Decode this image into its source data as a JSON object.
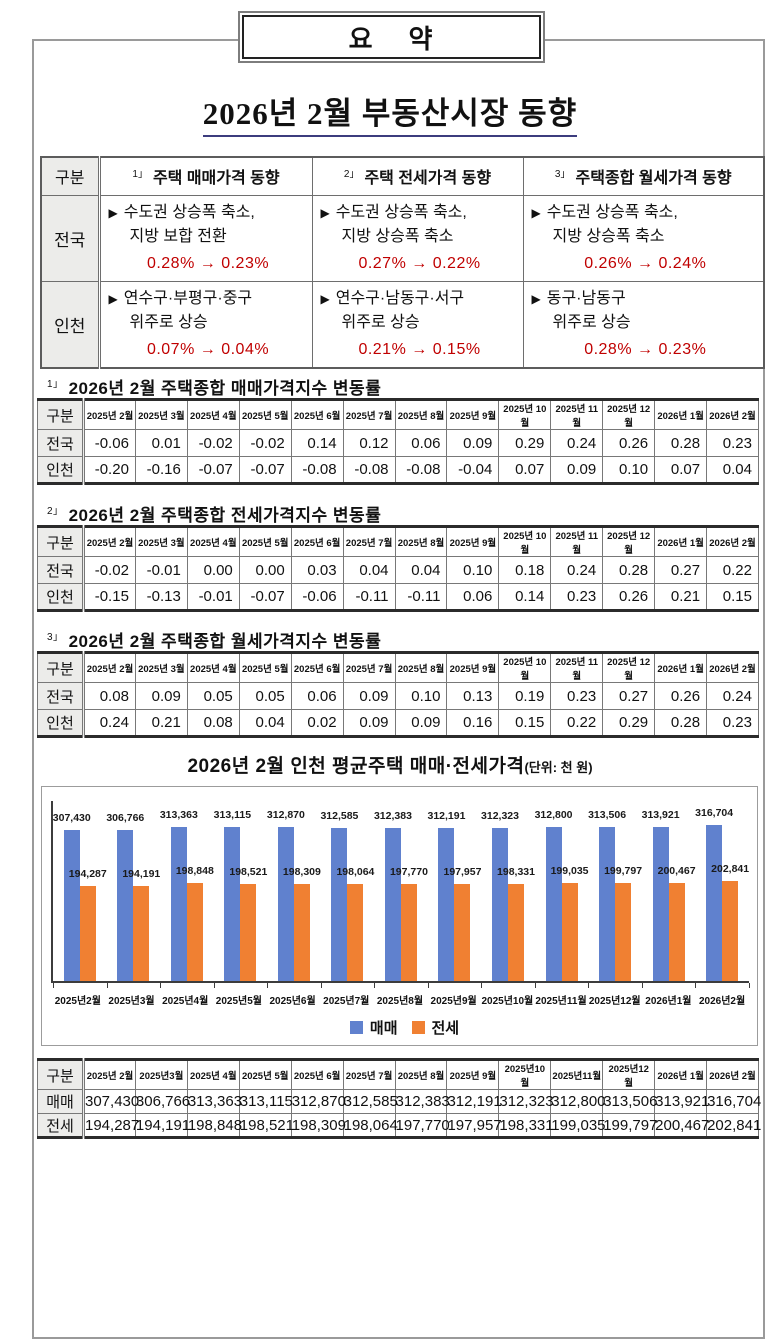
{
  "page": {
    "summary_box_label": "요    약",
    "main_title": "2026년 2월 부동산시장 동향"
  },
  "colors": {
    "accent_red": "#c00000",
    "bar_sale": "#6081ce",
    "bar_jeonse": "#f08032",
    "rowhead_bg": "#ececea"
  },
  "summary_table": {
    "corner_label": "구분",
    "columns": [
      {
        "sup": "1」",
        "label": "주택 매매가격 동향"
      },
      {
        "sup": "2」",
        "label": "주택 전세가격 동향"
      },
      {
        "sup": "3」",
        "label": "주택종합 월세가격 동향"
      }
    ],
    "rows": [
      {
        "label": "전국",
        "cells": [
          {
            "marker": "▶",
            "line1": "수도권 상승폭 축소,",
            "line2": "지방 보합 전환",
            "change": "0.28% → 0.23%"
          },
          {
            "marker": "▶",
            "line1": "수도권 상승폭 축소,",
            "line2": "지방 상승폭 축소",
            "change": "0.27% → 0.22%"
          },
          {
            "marker": "▶",
            "line1": "수도권 상승폭 축소,",
            "line2": "지방 상승폭 축소",
            "change": "0.26% → 0.24%"
          }
        ]
      },
      {
        "label": "인천",
        "cells": [
          {
            "marker": "▶",
            "line1": "연수구·부평구·중구",
            "line2": "위주로 상승",
            "change": "0.07% → 0.04%"
          },
          {
            "marker": "▶",
            "line1": "연수구·남동구·서구",
            "line2": "위주로 상승",
            "change": "0.21% → 0.15%"
          },
          {
            "marker": "▶",
            "line1": "동구·남동구",
            "line2": "위주로 상승",
            "change": "0.28% → 0.23%"
          }
        ]
      }
    ]
  },
  "index_tables": [
    {
      "sup": "1」",
      "title": "2026년 2월 주택종합 매매가격지수 변동률",
      "corner": "구분",
      "months": [
        "2025년 2월",
        "2025년 3월",
        "2025년 4월",
        "2025년 5월",
        "2025년 6월",
        "2025년 7월",
        "2025년 8월",
        "2025년 9월",
        "2025년 10월",
        "2025년 11월",
        "2025년 12월",
        "2026년 1월",
        "2026년 2월"
      ],
      "rows": [
        {
          "label": "전국",
          "values": [
            "-0.06",
            "0.01",
            "-0.02",
            "-0.02",
            "0.14",
            "0.12",
            "0.06",
            "0.09",
            "0.29",
            "0.24",
            "0.26",
            "0.28",
            "0.23"
          ]
        },
        {
          "label": "인천",
          "values": [
            "-0.20",
            "-0.16",
            "-0.07",
            "-0.07",
            "-0.08",
            "-0.08",
            "-0.08",
            "-0.04",
            "0.07",
            "0.09",
            "0.10",
            "0.07",
            "0.04"
          ]
        }
      ]
    },
    {
      "sup": "2」",
      "title": "2026년 2월 주택종합 전세가격지수 변동률",
      "corner": "구분",
      "months": [
        "2025년 2월",
        "2025년 3월",
        "2025년 4월",
        "2025년 5월",
        "2025년 6월",
        "2025년 7월",
        "2025년 8월",
        "2025년 9월",
        "2025년 10월",
        "2025년 11월",
        "2025년 12월",
        "2026년 1월",
        "2026년 2월"
      ],
      "rows": [
        {
          "label": "전국",
          "values": [
            "-0.02",
            "-0.01",
            "0.00",
            "0.00",
            "0.03",
            "0.04",
            "0.04",
            "0.10",
            "0.18",
            "0.24",
            "0.28",
            "0.27",
            "0.22"
          ]
        },
        {
          "label": "인천",
          "values": [
            "-0.15",
            "-0.13",
            "-0.01",
            "-0.07",
            "-0.06",
            "-0.11",
            "-0.11",
            "0.06",
            "0.14",
            "0.23",
            "0.26",
            "0.21",
            "0.15"
          ]
        }
      ]
    },
    {
      "sup": "3」",
      "title": "2026년 2월 주택종합 월세가격지수 변동률",
      "corner": "구분",
      "months": [
        "2025년 2월",
        "2025년 3월",
        "2025년 4월",
        "2025년 5월",
        "2025년 6월",
        "2025년 7월",
        "2025년 8월",
        "2025년 9월",
        "2025년 10월",
        "2025년 11월",
        "2025년 12월",
        "2026년 1월",
        "2026년 2월"
      ],
      "rows": [
        {
          "label": "전국",
          "values": [
            "0.08",
            "0.09",
            "0.05",
            "0.05",
            "0.06",
            "0.09",
            "0.10",
            "0.13",
            "0.19",
            "0.23",
            "0.27",
            "0.26",
            "0.24"
          ]
        },
        {
          "label": "인천",
          "values": [
            "0.24",
            "0.21",
            "0.08",
            "0.04",
            "0.02",
            "0.09",
            "0.09",
            "0.16",
            "0.15",
            "0.22",
            "0.29",
            "0.28",
            "0.23"
          ]
        }
      ]
    }
  ],
  "chart_data": {
    "type": "bar",
    "title": "2026년 2월 인천 평균주택 매매·전세가격",
    "unit_label": "(단위: 천 원)",
    "categories": [
      "2025년2월",
      "2025년3월",
      "2025년4월",
      "2025년5월",
      "2025년6월",
      "2025년7월",
      "2025년8월",
      "2025년9월",
      "2025년10월",
      "2025년11월",
      "2025년12월",
      "2026년1월",
      "2026년2월"
    ],
    "series": [
      {
        "name": "매매",
        "color": "#6081ce",
        "values": [
          307430,
          306766,
          313363,
          313115,
          312870,
          312585,
          312383,
          312191,
          312323,
          312800,
          313506,
          313921,
          316704
        ]
      },
      {
        "name": "전세",
        "color": "#f08032",
        "values": [
          194287,
          194191,
          198848,
          198521,
          198309,
          198064,
          197770,
          197957,
          198331,
          199035,
          199797,
          200467,
          202841
        ]
      }
    ],
    "ylim": [
      0,
      340000
    ],
    "grid": false,
    "data_labels": true,
    "legend_position": "bottom"
  },
  "price_table": {
    "corner": "구분",
    "months": [
      "2025년 2월",
      "2025년3월",
      "2025년 4월",
      "2025년 5월",
      "2025년 6월",
      "2025년 7월",
      "2025년 8월",
      "2025년 9월",
      "2025년10월",
      "2025년11월",
      "2025년12월",
      "2026년 1월",
      "2026년 2월"
    ],
    "rows": [
      {
        "label": "매매",
        "values": [
          "307,430",
          "306,766",
          "313,363",
          "313,115",
          "312,870",
          "312,585",
          "312,383",
          "312,191",
          "312,323",
          "312,800",
          "313,506",
          "313,921",
          "316,704"
        ]
      },
      {
        "label": "전세",
        "values": [
          "194,287",
          "194,191",
          "198,848",
          "198,521",
          "198,309",
          "198,064",
          "197,770",
          "197,957",
          "198,331",
          "199,035",
          "199,797",
          "200,467",
          "202,841"
        ]
      }
    ]
  }
}
